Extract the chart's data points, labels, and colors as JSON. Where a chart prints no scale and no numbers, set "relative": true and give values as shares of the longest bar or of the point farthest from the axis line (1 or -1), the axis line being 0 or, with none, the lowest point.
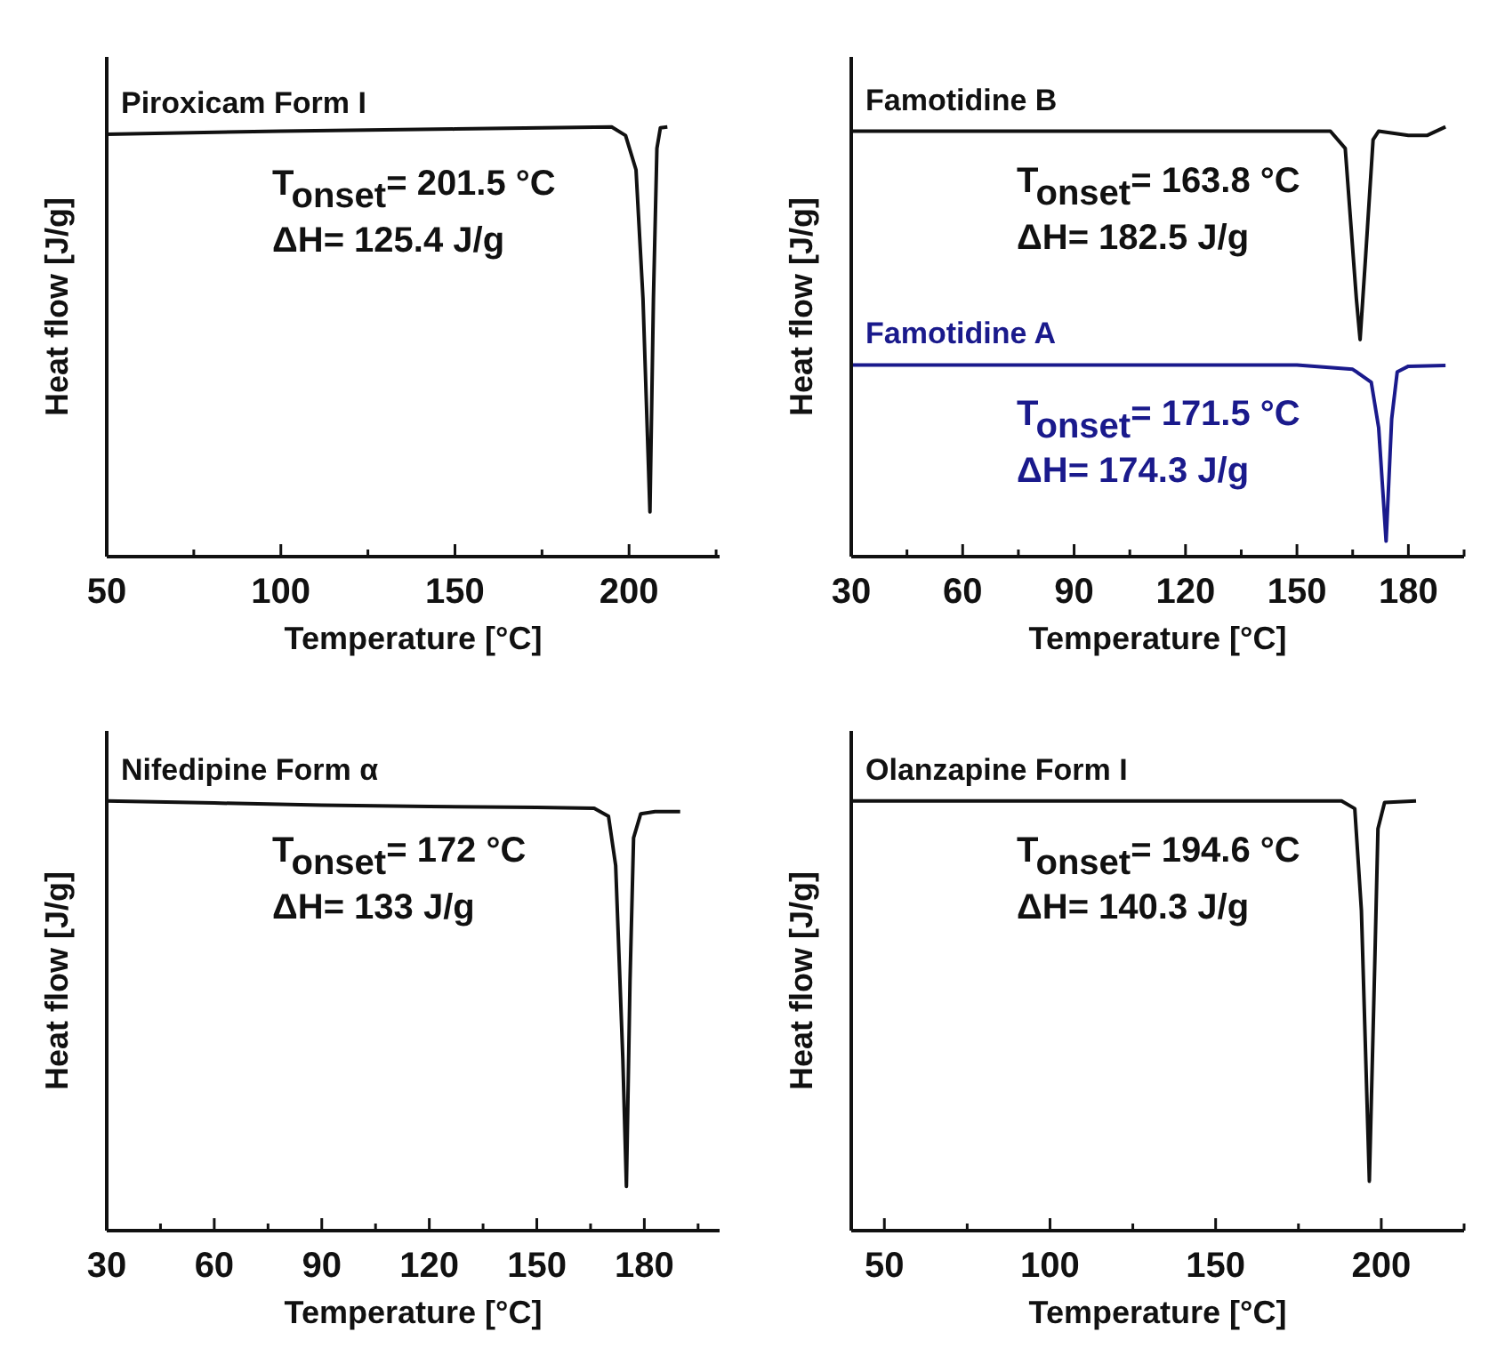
{
  "chart_data": [
    {
      "type": "line",
      "relative": true,
      "xlabel": "Temperature [°C]",
      "ylabel": "Heat flow [J/g]",
      "xlim": [
        50,
        226
      ],
      "xticks": [
        50,
        {
          "value": 75,
          "label": null
        },
        100,
        {
          "value": 125,
          "label": null
        },
        150,
        {
          "value": 175,
          "label": null
        },
        200,
        {
          "value": 225,
          "label": null
        }
      ],
      "series": [
        {
          "name": "Piroxicam Form I",
          "color": "#111111",
          "x": [
            50,
            100,
            150,
            195,
            199,
            202,
            204,
            206,
            207,
            208,
            209,
            211
          ],
          "values": [
            0.983,
            0.99,
            0.995,
            1.0,
            0.98,
            0.9,
            0.6,
            0.104,
            0.6,
            0.95,
            0.998,
            1.0
          ]
        }
      ],
      "annotations": [
        "T$_{onset}$= 201.5 °C",
        "ΔH= 125.4 J/g"
      ]
    },
    {
      "type": "line",
      "relative": true,
      "xlabel": "Temperature [°C]",
      "ylabel": "Heat flow [J/g]",
      "xlim": [
        30,
        195
      ],
      "xticks": [
        30,
        {
          "value": 45,
          "label": null
        },
        60,
        {
          "value": 75,
          "label": null
        },
        90,
        {
          "value": 105,
          "label": null
        },
        120,
        {
          "value": 135,
          "label": null
        },
        150,
        {
          "value": 165,
          "label": null
        },
        180,
        {
          "value": 195,
          "label": null
        }
      ],
      "series": [
        {
          "name": "Famotidine B",
          "color": "#111111",
          "x": [
            30,
            90,
            159,
            163,
            166,
            167,
            168.5,
            170.5,
            172,
            180,
            185,
            190
          ],
          "values": [
            0.99,
            0.99,
            0.99,
            0.95,
            0.6,
            0.505,
            0.7,
            0.97,
            0.99,
            0.98,
            0.98,
            1.0
          ]
        },
        {
          "name": "Famotidine A",
          "color": "#1a1a8c",
          "x": [
            30,
            90,
            150,
            165,
            170,
            172,
            174,
            175.5,
            177,
            180,
            190
          ],
          "values": [
            0.446,
            0.446,
            0.446,
            0.436,
            0.406,
            0.3,
            0.036,
            0.32,
            0.43,
            0.443,
            0.445
          ]
        }
      ],
      "annotations": [
        "T$_{onset}$= 163.8 °C",
        "ΔH= 182.5 J/g",
        "T$_{onset}$= 171.5 °C",
        "ΔH= 174.3 J/g"
      ]
    },
    {
      "type": "line",
      "relative": true,
      "xlabel": "Temperature [°C]",
      "ylabel": "Heat flow [J/g]",
      "xlim": [
        30,
        201
      ],
      "xticks": [
        30,
        {
          "value": 45,
          "label": null
        },
        60,
        {
          "value": 75,
          "label": null
        },
        90,
        {
          "value": 105,
          "label": null
        },
        120,
        {
          "value": 135,
          "label": null
        },
        150,
        {
          "value": 165,
          "label": null
        },
        180,
        {
          "value": 195,
          "label": null
        }
      ],
      "series": [
        {
          "name": "Nifedipine Form α",
          "color": "#111111",
          "x": [
            30,
            60,
            90,
            120,
            150,
            166,
            170,
            172,
            174,
            175,
            176,
            177,
            179,
            183,
            190
          ],
          "values": [
            1.0,
            0.995,
            0.99,
            0.987,
            0.985,
            0.983,
            0.964,
            0.85,
            0.4,
            0.103,
            0.58,
            0.914,
            0.97,
            0.975,
            0.975
          ]
        }
      ],
      "annotations": [
        "T$_{onset}$= 172 °C",
        "ΔH= 133 J/g"
      ]
    },
    {
      "type": "line",
      "relative": true,
      "xlabel": "Temperature [°C]",
      "ylabel": "Heat flow [J/g]",
      "xlim": [
        40,
        225
      ],
      "xticks": [
        50,
        {
          "value": 75,
          "label": null
        },
        100,
        {
          "value": 125,
          "label": null
        },
        150,
        {
          "value": 175,
          "label": null
        },
        200,
        {
          "value": 225,
          "label": null
        }
      ],
      "series": [
        {
          "name": "Olanzapine Form I",
          "color": "#111111",
          "x": [
            40,
            100,
            150,
            188,
            192,
            194,
            196.4,
            198,
            199,
            201,
            210.5
          ],
          "values": [
            1.0,
            1.0,
            1.0,
            1.0,
            0.982,
            0.745,
            0.115,
            0.61,
            0.935,
            0.996,
            1.0
          ]
        }
      ],
      "annotations": [
        "T$_{onset}$= 194.6 °C",
        "ΔH= 140.3 J/g"
      ]
    }
  ]
}
